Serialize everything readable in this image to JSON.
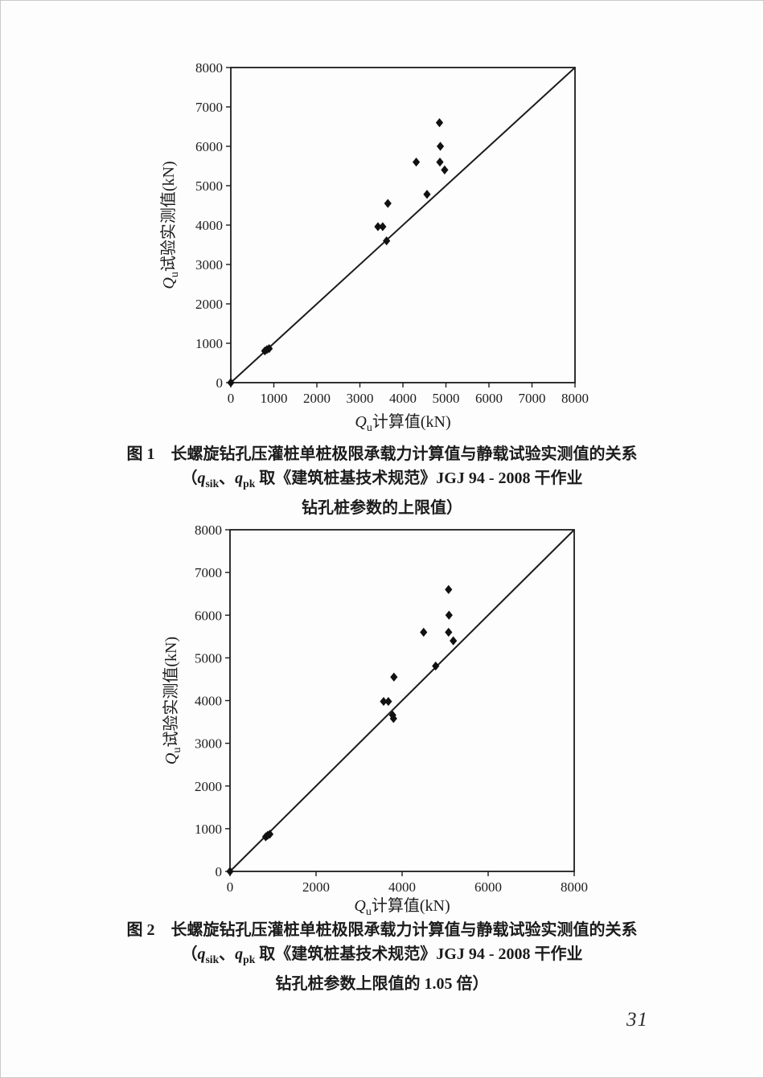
{
  "page": {
    "number": "31"
  },
  "figures": [
    {
      "id": "figure-1",
      "caption_line1": "图 1　长螺旋钻孔压灌桩单桩极限承载力计算值与静载试验实测值的关系",
      "caption_line2_segments": [
        {
          "t": "（"
        },
        {
          "t": "q",
          "i": true
        },
        {
          "t": "sik",
          "sub": true
        },
        {
          "t": "、"
        },
        {
          "t": "q",
          "i": true
        },
        {
          "t": "pk",
          "sub": true
        },
        {
          "t": " 取《建筑桩基技术规范》JGJ 94 - 2008 干作业"
        }
      ],
      "caption_line3": "钻孔桩参数的上限值）"
    },
    {
      "id": "figure-2",
      "caption_line1": "图 2　长螺旋钻孔压灌桩单桩极限承载力计算值与静载试验实测值的关系",
      "caption_line2_segments": [
        {
          "t": "（"
        },
        {
          "t": "q",
          "i": true
        },
        {
          "t": "sik",
          "sub": true
        },
        {
          "t": "、"
        },
        {
          "t": "q",
          "i": true
        },
        {
          "t": "pk",
          "sub": true
        },
        {
          "t": " 取《建筑桩基技术规范》JGJ 94 - 2008 干作业"
        }
      ],
      "caption_line3": "钻孔桩参数上限值的 1.05 倍）"
    }
  ],
  "chart_data": [
    {
      "type": "scatter",
      "title": "图1 长螺旋钻孔压灌桩单桩极限承载力计算值与静载试验实测值的关系（qsik、qpk 取《建筑桩基技术规范》JGJ 94 - 2008 干作业钻孔桩参数的上限值）",
      "xlabel": "Qu计算值(kN)",
      "ylabel": "Qu试验实测值(kN)",
      "xlabel_segments": [
        {
          "t": "Q",
          "i": true
        },
        {
          "t": "u",
          "sub": true
        },
        {
          "t": "计算值(kN)"
        }
      ],
      "ylabel_segments": [
        {
          "t": "Q",
          "i": true
        },
        {
          "t": "u",
          "sub": true
        },
        {
          "t": "试验实测值(kN)"
        }
      ],
      "xlim": [
        0,
        8000
      ],
      "ylim": [
        0,
        8000
      ],
      "xticks": [
        0,
        1000,
        2000,
        3000,
        4000,
        5000,
        6000,
        7000,
        8000
      ],
      "yticks": [
        0,
        1000,
        2000,
        3000,
        4000,
        5000,
        6000,
        7000,
        8000
      ],
      "grid": false,
      "legend": false,
      "diagonal_line": {
        "from": [
          0,
          0
        ],
        "to": [
          8000,
          8000
        ]
      },
      "marker": "diamond",
      "marker_color": "#111111",
      "points": [
        [
          4850,
          6600
        ],
        [
          4870,
          6000
        ],
        [
          4310,
          5600
        ],
        [
          4860,
          5600
        ],
        [
          4970,
          5400
        ],
        [
          4560,
          4780
        ],
        [
          3650,
          4550
        ],
        [
          3420,
          3960
        ],
        [
          3530,
          3960
        ],
        [
          3620,
          3600
        ],
        [
          790,
          805
        ],
        [
          840,
          840
        ],
        [
          890,
          865
        ],
        [
          0,
          0
        ]
      ]
    },
    {
      "type": "scatter",
      "title": "图2 长螺旋钻孔压灌桩单桩极限承载力计算值与静载试验实测值的关系（qsik、qpk 取《建筑桩基技术规范》JGJ 94 - 2008 干作业钻孔桩参数上限值的 1.05 倍）",
      "xlabel": "Qu计算值(kN)",
      "ylabel": "Qu试验实测值(kN)",
      "xlabel_segments": [
        {
          "t": "Q",
          "i": true
        },
        {
          "t": "u",
          "sub": true
        },
        {
          "t": "计算值(kN)"
        }
      ],
      "ylabel_segments": [
        {
          "t": "Q",
          "i": true
        },
        {
          "t": "u",
          "sub": true
        },
        {
          "t": "试验实测值(kN)"
        }
      ],
      "xlim": [
        0,
        8000
      ],
      "ylim": [
        0,
        8000
      ],
      "xticks": [
        0,
        2000,
        4000,
        6000,
        8000
      ],
      "yticks": [
        0,
        1000,
        2000,
        3000,
        4000,
        5000,
        6000,
        7000,
        8000
      ],
      "grid": false,
      "legend": false,
      "diagonal_line": {
        "from": [
          0,
          0
        ],
        "to": [
          8000,
          8000
        ]
      },
      "marker": "diamond",
      "marker_color": "#111111",
      "points": [
        [
          5080,
          6600
        ],
        [
          5090,
          6000
        ],
        [
          4500,
          5600
        ],
        [
          5080,
          5600
        ],
        [
          5190,
          5400
        ],
        [
          4780,
          4810
        ],
        [
          3810,
          4550
        ],
        [
          3570,
          3980
        ],
        [
          3680,
          3980
        ],
        [
          3780,
          3660
        ],
        [
          3800,
          3580
        ],
        [
          830,
          810
        ],
        [
          875,
          845
        ],
        [
          925,
          870
        ],
        [
          0,
          0
        ]
      ]
    }
  ]
}
